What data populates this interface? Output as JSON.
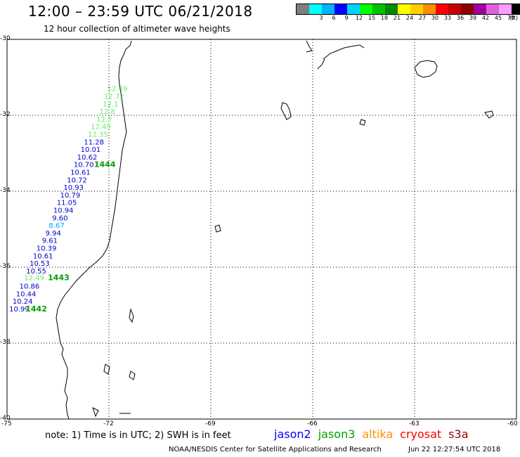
{
  "header": {
    "title": "12:00 – 23:59 UTC 06/21/2018",
    "subtitle": "12 hour collection of altimeter wave heights"
  },
  "legend": {
    "unit": "(ft)",
    "bins": [
      {
        "label": "",
        "color": "#7f7f7f"
      },
      {
        "label": "3",
        "color": "#00ffff"
      },
      {
        "label": "6",
        "color": "#00b2ff"
      },
      {
        "label": "9",
        "color": "#0000ff"
      },
      {
        "label": "12",
        "color": "#00d2ff"
      },
      {
        "label": "15",
        "color": "#00ff00"
      },
      {
        "label": "18",
        "color": "#00c200"
      },
      {
        "label": "21",
        "color": "#008a00"
      },
      {
        "label": "24",
        "color": "#ffff00"
      },
      {
        "label": "27",
        "color": "#ffd000"
      },
      {
        "label": "30",
        "color": "#ff8c00"
      },
      {
        "label": "33",
        "color": "#ff0000"
      },
      {
        "label": "36",
        "color": "#c80000"
      },
      {
        "label": "39",
        "color": "#8c0000"
      },
      {
        "label": "42",
        "color": "#a000a0"
      },
      {
        "label": "45",
        "color": "#e060e0"
      },
      {
        "label": "70",
        "color": "#ff9cff"
      },
      {
        "label": "",
        "color": "#000000"
      }
    ]
  },
  "map": {
    "lat_labels": [
      "-30",
      "-32",
      "-34",
      "-36",
      "-38",
      "-40"
    ],
    "lon_labels": [
      "-75",
      "-72",
      "-69",
      "-66",
      "-63",
      "-60"
    ],
    "wave_heights": [
      {
        "v": "12.49",
        "lat": -31.29,
        "lon": -71.75,
        "c": "#66ee66"
      },
      {
        "v": "12.72",
        "lat": -31.49,
        "lon": -71.85,
        "c": "#66ee66"
      },
      {
        "v": "12.1",
        "lat": -31.69,
        "lon": -71.95,
        "c": "#66ee66"
      },
      {
        "v": "12.8",
        "lat": -31.89,
        "lon": -72.05,
        "c": "#66ee66"
      },
      {
        "v": "12.7",
        "lat": -32.09,
        "lon": -72.14,
        "c": "#66ee66"
      },
      {
        "v": "12.49",
        "lat": -32.29,
        "lon": -72.24,
        "c": "#66ee66"
      },
      {
        "v": "12.35",
        "lat": -32.49,
        "lon": -72.32,
        "c": "#66ee66"
      },
      {
        "v": "11.28",
        "lat": -32.69,
        "lon": -72.44,
        "c": "#0000cc"
      },
      {
        "v": "10.01",
        "lat": -32.89,
        "lon": -72.54,
        "c": "#0000cc"
      },
      {
        "v": "10.62",
        "lat": -33.09,
        "lon": -72.64,
        "c": "#0000cc"
      },
      {
        "v": "10.70",
        "lat": -33.29,
        "lon": -72.74,
        "c": "#0000cc"
      },
      {
        "v": "10.61",
        "lat": -33.49,
        "lon": -72.84,
        "c": "#0000cc"
      },
      {
        "v": "10.72",
        "lat": -33.69,
        "lon": -72.94,
        "c": "#0000cc"
      },
      {
        "v": "10.93",
        "lat": -33.89,
        "lon": -73.04,
        "c": "#0000cc"
      },
      {
        "v": "10.79",
        "lat": -34.09,
        "lon": -73.14,
        "c": "#0000cc"
      },
      {
        "v": "11.05",
        "lat": -34.29,
        "lon": -73.24,
        "c": "#0000cc"
      },
      {
        "v": "10.94",
        "lat": -34.49,
        "lon": -73.34,
        "c": "#0000cc"
      },
      {
        "v": "9.60",
        "lat": -34.69,
        "lon": -73.44,
        "c": "#0000cc"
      },
      {
        "v": "8.67",
        "lat": -34.89,
        "lon": -73.54,
        "c": "#00aaff"
      },
      {
        "v": "9.94",
        "lat": -35.09,
        "lon": -73.64,
        "c": "#0000cc"
      },
      {
        "v": "9.61",
        "lat": -35.29,
        "lon": -73.74,
        "c": "#0000cc"
      },
      {
        "v": "10.39",
        "lat": -35.49,
        "lon": -73.84,
        "c": "#0000cc"
      },
      {
        "v": "10.61",
        "lat": -35.69,
        "lon": -73.94,
        "c": "#0000cc"
      },
      {
        "v": "10.53",
        "lat": -35.89,
        "lon": -74.04,
        "c": "#0000cc"
      },
      {
        "v": "10.55",
        "lat": -36.09,
        "lon": -74.14,
        "c": "#0000cc"
      },
      {
        "v": "12.49",
        "lat": -36.27,
        "lon": -74.2,
        "c": "#66ee66"
      },
      {
        "v": "10.86",
        "lat": -36.49,
        "lon": -74.34,
        "c": "#0000cc"
      },
      {
        "v": "10.44",
        "lat": -36.69,
        "lon": -74.44,
        "c": "#0000cc"
      },
      {
        "v": "10.24",
        "lat": -36.89,
        "lon": -74.54,
        "c": "#0000cc"
      },
      {
        "v": "10.99",
        "lat": -37.09,
        "lon": -74.64,
        "c": "#0000cc"
      }
    ],
    "pass_labels": [
      {
        "v": "1444",
        "lat": -33.29,
        "lon": -72.12
      },
      {
        "v": "1443",
        "lat": -36.27,
        "lon": -73.48
      },
      {
        "v": "1442",
        "lat": -37.09,
        "lon": -74.14
      }
    ],
    "colors": {
      "coast": "#000000",
      "grid": "#000000",
      "pass": "#00a000"
    }
  },
  "note": "note:  1) Time is in UTC;  2) SWH is in feet",
  "satellites": [
    {
      "name": "jason2",
      "color": "#0000ff"
    },
    {
      "name": "jason3",
      "color": "#00a000"
    },
    {
      "name": "altika",
      "color": "#ff8c00"
    },
    {
      "name": "cryosat",
      "color": "#ff0000"
    },
    {
      "name": "s3a",
      "color": "#a00000"
    }
  ],
  "footer": {
    "left": "NOAA/NESDIS Center for Satellite Applications and Research",
    "right": "Jun 22 12:27:54 UTC 2018"
  }
}
